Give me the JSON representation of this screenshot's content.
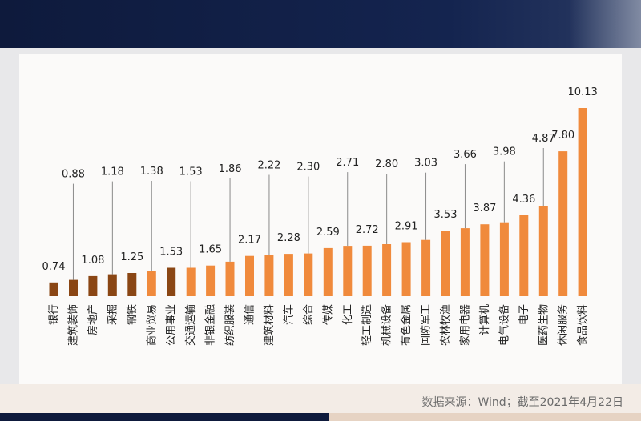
{
  "source_note": "数据来源：Wind；截至2021年4月22日",
  "colors": {
    "dark_bar": "#8a4614",
    "orange_bar": "#f08a3c",
    "leader_line": "#8a8a8a",
    "label_text": "#222222"
  },
  "chart_data": {
    "type": "bar",
    "title": "",
    "xlabel": "",
    "ylabel": "",
    "ylim": [
      0,
      10.13
    ],
    "categories": [
      "银行",
      "建筑装饰",
      "房地产",
      "采掘",
      "钢铁",
      "商业贸易",
      "公用事业",
      "交通运输",
      "非银金融",
      "纺织服装",
      "通信",
      "建筑材料",
      "汽车",
      "综合",
      "传媒",
      "化工",
      "轻工制造",
      "机械设备",
      "有色金属",
      "国防军工",
      "农林牧渔",
      "家用电器",
      "计算机",
      "电气设备",
      "电子",
      "医药生物",
      "休闲服务",
      "食品饮料"
    ],
    "values": [
      0.74,
      0.88,
      1.08,
      1.18,
      1.25,
      1.38,
      1.53,
      1.53,
      1.65,
      1.86,
      2.17,
      2.22,
      2.28,
      2.3,
      2.59,
      2.71,
      2.72,
      2.8,
      2.91,
      3.03,
      3.53,
      3.66,
      3.87,
      3.98,
      4.36,
      4.87,
      7.8,
      10.13
    ],
    "value_labels": [
      "0.74",
      "0.88",
      "1.08",
      "1.18",
      "1.25",
      "1.38",
      "1.53",
      "1.53",
      "1.65",
      "1.86",
      "2.17",
      "2.22",
      "2.28",
      "2.30",
      "2.59",
      "2.71",
      "2.72",
      "2.80",
      "2.91",
      "3.03",
      "3.53",
      "3.66",
      "3.87",
      "3.98",
      "4.36",
      "4.87",
      "7.80",
      "10.13"
    ],
    "bar_color_group": [
      "dark",
      "dark",
      "dark",
      "dark",
      "dark",
      "orange",
      "dark",
      "orange",
      "orange",
      "orange",
      "orange",
      "orange",
      "orange",
      "orange",
      "orange",
      "orange",
      "orange",
      "orange",
      "orange",
      "orange",
      "orange",
      "orange",
      "orange",
      "orange",
      "orange",
      "orange",
      "orange",
      "orange"
    ],
    "label_offset_kind": [
      "none",
      "leader",
      "none",
      "leader",
      "none",
      "leader",
      "none",
      "leader",
      "none",
      "leader",
      "none",
      "leader",
      "none",
      "leader",
      "none",
      "leader",
      "none",
      "leader",
      "none",
      "leader",
      "none",
      "leader",
      "none",
      "leader",
      "none",
      "leader",
      "none",
      "none"
    ],
    "grid": false,
    "legend": "none"
  }
}
